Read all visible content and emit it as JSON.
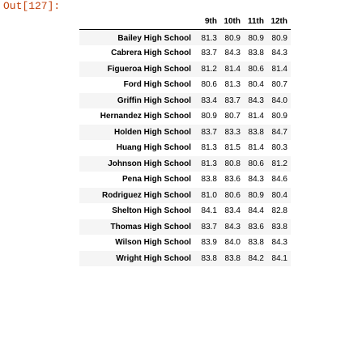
{
  "cell": {
    "out_prompt": "Out[127]:"
  },
  "table": {
    "columns": [
      "",
      "9th",
      "10th",
      "11th",
      "12th"
    ],
    "rows": [
      {
        "school": "Bailey High School",
        "values": [
          "81.3",
          "80.9",
          "80.9",
          "80.9"
        ]
      },
      {
        "school": "Cabrera High School",
        "values": [
          "83.7",
          "84.3",
          "83.8",
          "84.3"
        ]
      },
      {
        "school": "Figueroa High School",
        "values": [
          "81.2",
          "81.4",
          "80.6",
          "81.4"
        ]
      },
      {
        "school": "Ford High School",
        "values": [
          "80.6",
          "81.3",
          "80.4",
          "80.7"
        ]
      },
      {
        "school": "Griffin High School",
        "values": [
          "83.4",
          "83.7",
          "84.3",
          "84.0"
        ]
      },
      {
        "school": "Hernandez High School",
        "values": [
          "80.9",
          "80.7",
          "81.4",
          "80.9"
        ]
      },
      {
        "school": "Holden High School",
        "values": [
          "83.7",
          "83.3",
          "83.8",
          "84.7"
        ]
      },
      {
        "school": "Huang High School",
        "values": [
          "81.3",
          "81.5",
          "81.4",
          "80.3"
        ]
      },
      {
        "school": "Johnson High School",
        "values": [
          "81.3",
          "80.8",
          "80.6",
          "81.2"
        ]
      },
      {
        "school": "Pena High School",
        "values": [
          "83.8",
          "83.6",
          "84.3",
          "84.6"
        ]
      },
      {
        "school": "Rodriguez High School",
        "values": [
          "81.0",
          "80.6",
          "80.9",
          "80.4"
        ]
      },
      {
        "school": "Shelton High School",
        "values": [
          "84.1",
          "83.4",
          "84.4",
          "82.8"
        ]
      },
      {
        "school": "Thomas High School",
        "values": [
          "83.7",
          "84.3",
          "83.6",
          "83.8"
        ]
      },
      {
        "school": "Wilson High School",
        "values": [
          "83.9",
          "84.0",
          "83.8",
          "84.3"
        ]
      },
      {
        "school": "Wright High School",
        "values": [
          "83.8",
          "83.8",
          "84.2",
          "84.1"
        ]
      }
    ]
  }
}
